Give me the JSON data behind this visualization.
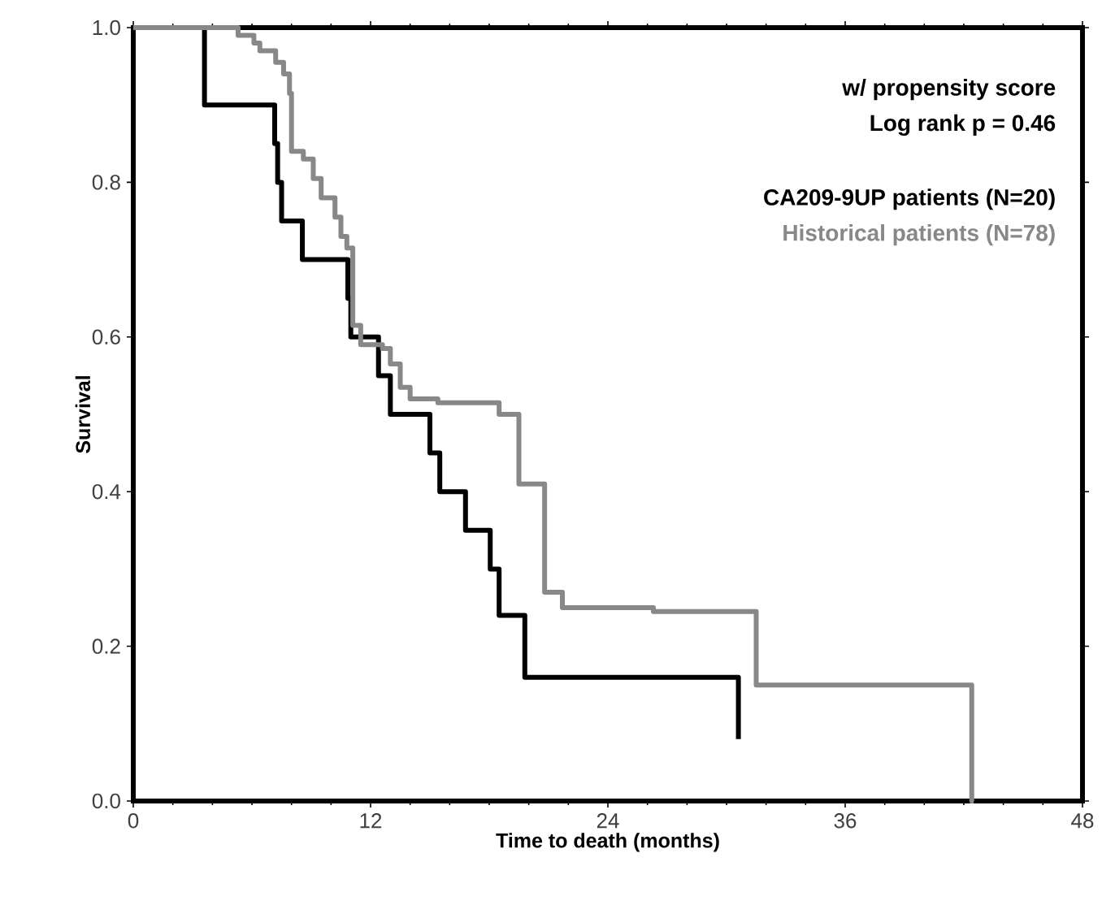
{
  "chart_data": {
    "type": "step",
    "xlabel": "Time to death  (months)",
    "ylabel": "Survival",
    "annotations": [
      "w/ propensity score",
      "Log rank p = 0.46"
    ],
    "xlim": [
      0,
      48
    ],
    "ylim": [
      0,
      1
    ],
    "xticks": [
      0,
      12,
      24,
      36,
      48
    ],
    "yticks": [
      {
        "value": 0,
        "label": "0.0"
      },
      {
        "value": 0.2,
        "label": "0.2"
      },
      {
        "value": 0.4,
        "label": "0.4"
      },
      {
        "value": 0.6,
        "label": "0.6"
      },
      {
        "value": 0.8,
        "label": "0.8"
      },
      {
        "value": 1,
        "label": "1.0"
      }
    ],
    "legend": "top right",
    "marker": "none",
    "line_style": "solid",
    "series": [
      {
        "name": "CA209-9UP patients (N=20)",
        "color": "#000000",
        "x": [
          0,
          3.6,
          7.15,
          7.3,
          7.5,
          8.55,
          10.85,
          11.0,
          12.4,
          13.0,
          15.0,
          15.5,
          16.8,
          18.05,
          18.5,
          19.8,
          30.6
        ],
        "values": [
          1.0,
          0.9,
          0.85,
          0.8,
          0.75,
          0.7,
          0.65,
          0.6,
          0.55,
          0.5,
          0.45,
          0.4,
          0.35,
          0.3,
          0.24,
          0.16,
          0.08
        ]
      },
      {
        "name": "Historical patients (N=78)",
        "color": "#888888",
        "x": [
          0,
          3.9,
          5.3,
          6.1,
          6.4,
          7.2,
          7.6,
          7.9,
          8.0,
          8.6,
          9.1,
          9.5,
          10.2,
          10.5,
          10.8,
          11.1,
          11.5,
          12.6,
          13.0,
          13.5,
          14.0,
          15.4,
          18.5,
          19.5,
          20.8,
          21.7,
          26.3,
          31.5,
          42.4,
          42.5
        ],
        "values": [
          1.0,
          1.0,
          0.99,
          0.98,
          0.97,
          0.955,
          0.94,
          0.915,
          0.84,
          0.83,
          0.805,
          0.78,
          0.755,
          0.73,
          0.715,
          0.615,
          0.59,
          0.585,
          0.565,
          0.535,
          0.52,
          0.515,
          0.5,
          0.41,
          0.27,
          0.25,
          0.245,
          0.15,
          0.0,
          0.0
        ]
      }
    ]
  }
}
